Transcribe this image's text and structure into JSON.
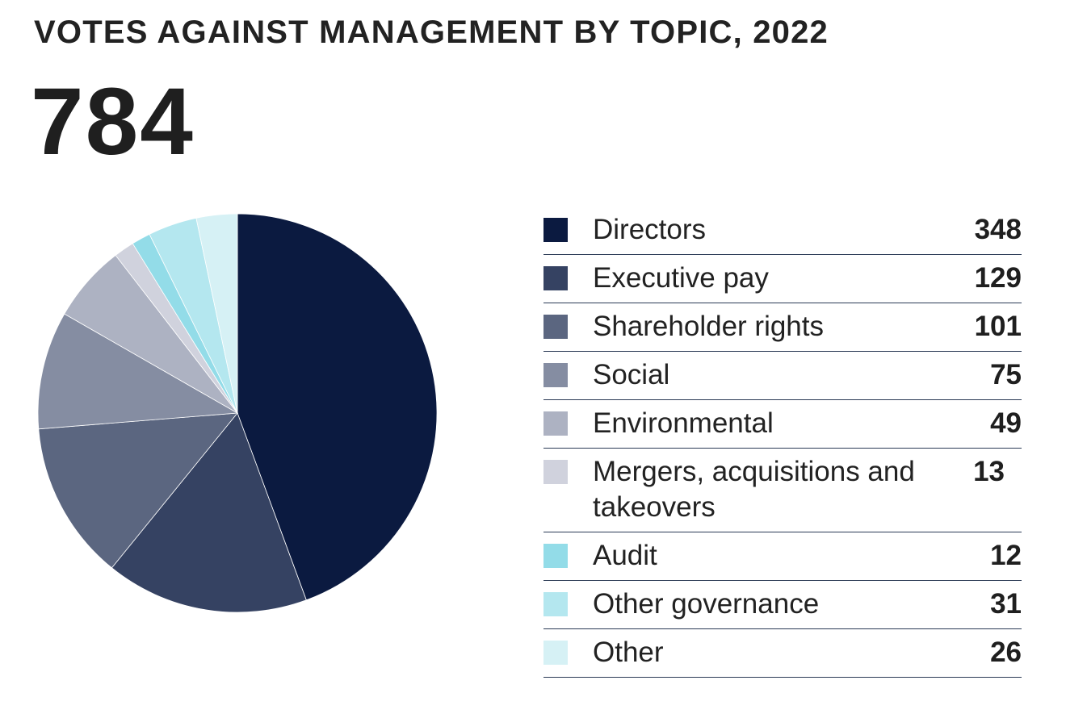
{
  "title": "VOTES AGAINST MANAGEMENT BY TOPIC, 2022",
  "total": "784",
  "chart_data": {
    "type": "pie",
    "title": "VOTES AGAINST MANAGEMENT BY TOPIC, 2022",
    "total": 784,
    "categories": [
      "Directors",
      "Executive pay",
      "Shareholder rights",
      "Social",
      "Environmental",
      "Mergers, acquisitions and takeovers",
      "Audit",
      "Other governance",
      "Other"
    ],
    "values": [
      348,
      129,
      101,
      75,
      49,
      13,
      12,
      31,
      26
    ],
    "colors": [
      "#0b1a40",
      "#354262",
      "#5b6680",
      "#858da2",
      "#adb2c2",
      "#d0d2dd",
      "#93dce8",
      "#b4e7ef",
      "#d6f1f5"
    ],
    "legend_position": "right"
  }
}
